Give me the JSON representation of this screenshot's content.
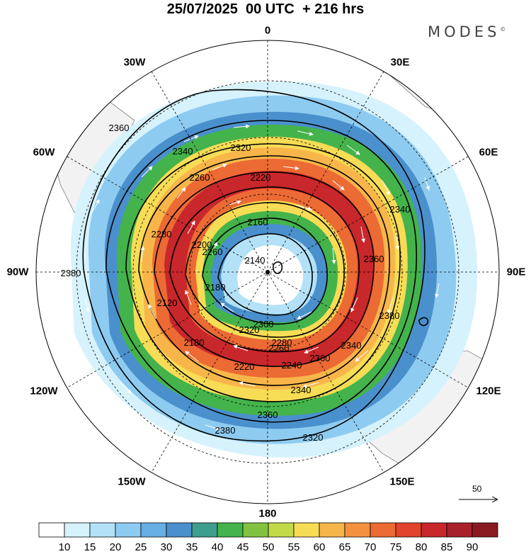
{
  "title": "25/07/2025  00 UTC  + 216 hrs",
  "brand": {
    "name": "MODES",
    "mark": "©"
  },
  "map": {
    "projection": "polar stereographic",
    "hemisphere": "south",
    "meridian_labels": [
      {
        "lon": "0",
        "text": "0"
      },
      {
        "lon": "30E",
        "text": "30E"
      },
      {
        "lon": "60E",
        "text": "60E"
      },
      {
        "lon": "90E",
        "text": "90E"
      },
      {
        "lon": "120E",
        "text": "120E"
      },
      {
        "lon": "150E",
        "text": "150E"
      },
      {
        "lon": "180",
        "text": "180"
      },
      {
        "lon": "150W",
        "text": "150W"
      },
      {
        "lon": "120W",
        "text": "120W"
      },
      {
        "lon": "90W",
        "text": "90W"
      },
      {
        "lon": "60W",
        "text": "60W"
      },
      {
        "lon": "30W",
        "text": "30W"
      }
    ],
    "contour_labels": [
      "2380",
      "2360",
      "2340",
      "2320",
      "2280",
      "2260",
      "2220",
      "2200",
      "2180",
      "2160",
      "2140",
      "2120",
      "2180",
      "2220",
      "2240",
      "2260",
      "2280",
      "2300",
      "2320",
      "2340",
      "2360",
      "2380",
      "2360",
      "2340",
      "2320",
      "2380",
      "2360",
      "2340",
      "2260"
    ],
    "vector_reference": "50"
  },
  "colorbar": {
    "colors": [
      "#ffffff",
      "#d6f2fd",
      "#b3e2f8",
      "#8ecbf0",
      "#66aee3",
      "#4a90cc",
      "#3d9e8e",
      "#44b34b",
      "#82c241",
      "#c2d94a",
      "#f7dc55",
      "#f8b64a",
      "#f4913e",
      "#ec6a33",
      "#e2432c",
      "#c8272b",
      "#a8202a",
      "#8a1a22"
    ],
    "tick_labels": [
      "10",
      "15",
      "20",
      "25",
      "30",
      "35",
      "40",
      "45",
      "50",
      "55",
      "60",
      "65",
      "70",
      "75",
      "80",
      "85",
      "90"
    ]
  },
  "colors": {
    "land": "#f2f2f2",
    "contour": "#000000",
    "vectors": "#ffffff"
  }
}
